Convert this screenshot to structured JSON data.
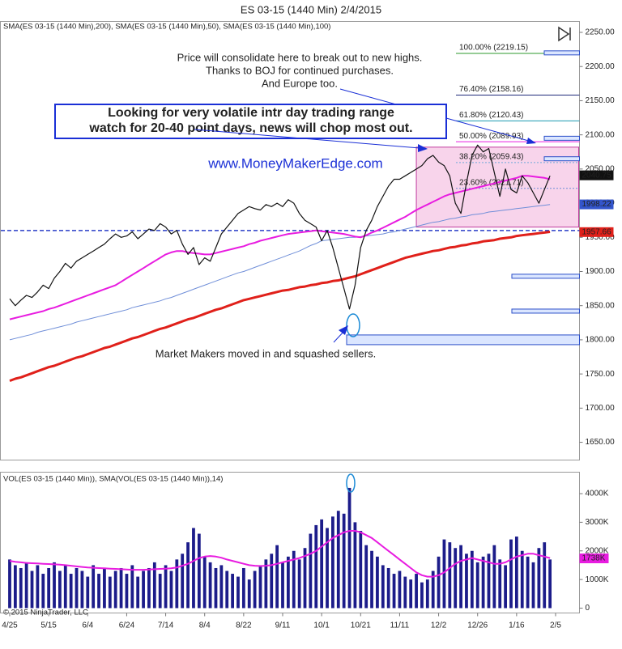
{
  "chart_data": {
    "type": "price-volume",
    "title": "ES 03-15 (1440 Min)  2/4/2015",
    "indicator_label": "SMA(ES 03-15 (1440 Min),200), SMA(ES 03-15 (1440 Min),50), SMA(ES 03-15 (1440 Min),100)",
    "volume_label": "VOL(ES 03-15 (1440 Min)), SMA(VOL(ES 03-15 (1440 Min)),14)",
    "copyright": "© 2015 NinjaTrader, LLC",
    "annotations": {
      "consolidate": [
        "Price will consolidate here to break out to new highs.",
        "Thanks to BOJ for continued purchases.",
        "And Europe too."
      ],
      "box": [
        "Looking for very volatile intr day trading range",
        "watch for 20-40 point days, news will chop most out."
      ],
      "website": "www.MoneyMakerEdge.com",
      "market_makers": "Market Makers moved in and squashed sellers."
    },
    "categories": [
      "4/25",
      null,
      null,
      null,
      null,
      null,
      null,
      "5/15",
      null,
      null,
      null,
      null,
      null,
      null,
      "6/4",
      null,
      null,
      null,
      null,
      null,
      null,
      "6/24",
      null,
      null,
      null,
      null,
      null,
      null,
      "7/14",
      null,
      null,
      null,
      null,
      null,
      null,
      "8/4",
      null,
      null,
      null,
      null,
      null,
      null,
      "8/22",
      null,
      null,
      null,
      null,
      null,
      null,
      "9/11",
      null,
      null,
      null,
      null,
      null,
      null,
      "10/1",
      null,
      null,
      null,
      null,
      null,
      null,
      "10/21",
      null,
      null,
      null,
      null,
      null,
      null,
      "11/11",
      null,
      null,
      null,
      null,
      null,
      null,
      "12/2",
      null,
      null,
      null,
      null,
      null,
      null,
      "12/26",
      null,
      null,
      null,
      null,
      null,
      null,
      "1/16",
      null,
      null,
      null,
      null,
      null,
      null,
      "2/5"
    ],
    "ylim": [
      1624,
      2266
    ],
    "yticks": [
      {
        "value": 2250,
        "label": "2250.00"
      },
      {
        "value": 2200,
        "label": "2200.00"
      },
      {
        "value": 2150,
        "label": "2150.00"
      },
      {
        "value": 2100,
        "label": "2100.00"
      },
      {
        "value": 2050,
        "label": "2050.00"
      },
      {
        "value": 2000,
        "label": "2000.00"
      },
      {
        "value": 1950,
        "label": "1950.00"
      },
      {
        "value": 1900,
        "label": "1900.00"
      },
      {
        "value": 1850,
        "label": "1850.00"
      },
      {
        "value": 1800,
        "label": "1800.00"
      },
      {
        "value": 1750,
        "label": "1750.00"
      },
      {
        "value": 1700,
        "label": "1700.00"
      },
      {
        "value": 1650,
        "label": "1650.00"
      }
    ],
    "series": [
      {
        "name": "Close",
        "color": "#111111",
        "width": 1.2,
        "values": [
          1860,
          1850,
          1858,
          1865,
          1862,
          1870,
          1880,
          1875,
          1890,
          1900,
          1912,
          1905,
          1915,
          1920,
          1925,
          1930,
          1935,
          1940,
          1948,
          1955,
          1950,
          1952,
          1958,
          1948,
          1955,
          1962,
          1960,
          1970,
          1965,
          1955,
          1960,
          1940,
          1925,
          1935,
          1910,
          1920,
          1915,
          1935,
          1955,
          1965,
          1975,
          1985,
          1990,
          1995,
          1992,
          1990,
          1998,
          1995,
          2000,
          1995,
          2005,
          2000,
          1985,
          1975,
          1970,
          1965,
          1945,
          1960,
          1935,
          1905,
          1875,
          1845,
          1880,
          1935,
          1960,
          1975,
          1995,
          2010,
          2025,
          2035,
          2035,
          2040,
          2045,
          2050,
          2055,
          2065,
          2070,
          2060,
          2055,
          2040,
          2000,
          1985,
          2030,
          2070,
          2085,
          2075,
          2080,
          2045,
          2010,
          2050,
          2020,
          2015,
          2040,
          2030,
          2015,
          2000,
          2020,
          2040,
          null
        ]
      },
      {
        "name": "SMA 200",
        "color": "#e0201a",
        "width": 3,
        "values": [
          1740,
          1743,
          1745,
          1748,
          1751,
          1754,
          1757,
          1760,
          1762,
          1765,
          1768,
          1771,
          1774,
          1776,
          1779,
          1782,
          1785,
          1788,
          1790,
          1793,
          1796,
          1799,
          1802,
          1804,
          1807,
          1810,
          1813,
          1816,
          1818,
          1821,
          1824,
          1827,
          1830,
          1832,
          1835,
          1838,
          1841,
          1844,
          1846,
          1849,
          1852,
          1855,
          1858,
          1860,
          1862,
          1864,
          1866,
          1868,
          1870,
          1872,
          1873,
          1875,
          1877,
          1878,
          1880,
          1881,
          1883,
          1884,
          1886,
          1887,
          1889,
          1891,
          1893,
          1896,
          1899,
          1902,
          1905,
          1908,
          1911,
          1914,
          1917,
          1920,
          1922,
          1924,
          1926,
          1928,
          1930,
          1931,
          1933,
          1935,
          1936,
          1938,
          1939,
          1941,
          1942,
          1944,
          1945,
          1946,
          1948,
          1949,
          1950,
          1952,
          1953,
          1954,
          1955,
          1956,
          1957,
          1958,
          null
        ]
      },
      {
        "name": "SMA 50",
        "color": "#e81ce0",
        "width": 2,
        "values": [
          1830,
          1832,
          1834,
          1836,
          1838,
          1840,
          1842,
          1845,
          1847,
          1850,
          1853,
          1856,
          1859,
          1862,
          1865,
          1868,
          1871,
          1874,
          1877,
          1880,
          1885,
          1890,
          1895,
          1900,
          1905,
          1910,
          1915,
          1920,
          1925,
          1928,
          1930,
          1930,
          1928,
          1927,
          1926,
          1925,
          1925,
          1927,
          1929,
          1931,
          1933,
          1935,
          1937,
          1940,
          1942,
          1945,
          1947,
          1949,
          1951,
          1953,
          1955,
          1956,
          1957,
          1958,
          1959,
          1960,
          1959,
          1958,
          1957,
          1956,
          1955,
          1953,
          1951,
          1950,
          1953,
          1957,
          1960,
          1964,
          1968,
          1972,
          1976,
          1980,
          1985,
          1990,
          1994,
          1998,
          2002,
          2006,
          2010,
          2013,
          2015,
          2017,
          2019,
          2021,
          2023,
          2025,
          2027,
          2029,
          2031,
          2033,
          2035,
          2037,
          2040,
          2040,
          2039,
          2038,
          2037,
          2035,
          null
        ]
      },
      {
        "name": "SMA 100",
        "color": "#6f8ed8",
        "width": 1,
        "values": [
          1800,
          1802,
          1804,
          1806,
          1808,
          1811,
          1813,
          1815,
          1817,
          1819,
          1821,
          1823,
          1826,
          1828,
          1830,
          1832,
          1834,
          1836,
          1838,
          1840,
          1842,
          1844,
          1847,
          1849,
          1851,
          1853,
          1855,
          1857,
          1860,
          1862,
          1865,
          1868,
          1871,
          1874,
          1877,
          1880,
          1883,
          1886,
          1889,
          1892,
          1895,
          1898,
          1900,
          1903,
          1906,
          1909,
          1912,
          1915,
          1918,
          1921,
          1924,
          1927,
          1930,
          1934,
          1938,
          1941,
          1945,
          1946,
          1947,
          1948,
          1949,
          1950,
          1950,
          1951,
          1952,
          1953,
          1954,
          1955,
          1957,
          1958,
          1960,
          1962,
          1964,
          1966,
          1968,
          1970,
          1972,
          1973,
          1975,
          1977,
          1978,
          1980,
          1981,
          1983,
          1984,
          1985,
          1987,
          1988,
          1989,
          1990,
          1991,
          1992,
          1993,
          1994,
          1995,
          1996,
          1997,
          1998,
          null
        ]
      }
    ],
    "price_tags": [
      {
        "value": 2040.75,
        "color": "#111111"
      },
      {
        "value": 1998.22,
        "color": "#3355cc"
      },
      {
        "value": 1957.66,
        "color": "#e0201a"
      }
    ],
    "fib_levels": [
      {
        "label": "100.00% (2219.15)",
        "value": 2219.15,
        "color": "#2e9a2e"
      },
      {
        "label": "76.40% (2158.16)",
        "value": 2158.16,
        "color": "#1f2a7a"
      },
      {
        "label": "61.80% (2120.43)",
        "value": 2120.43,
        "color": "#1a9ab0"
      },
      {
        "label": "50.00% (2089.93)",
        "value": 2089.93,
        "color": "#e81ce0"
      },
      {
        "label": "38.20% (2059.43)",
        "value": 2059.43,
        "color": "#6fa8d8"
      },
      {
        "label": "23.60% (2021.71)",
        "value": 2021.71,
        "color": "#6f8ed8"
      }
    ],
    "support_levels": [
      2220,
      2095,
      2065,
      1893,
      1842,
      1800
    ],
    "dashed_level": 1960,
    "range_zone": [
      1965,
      2082
    ],
    "volume": {
      "color": "#1c1c8a",
      "sma_color": "#e81ce0",
      "ylim": [
        -170,
        4750
      ],
      "yticks": [
        {
          "value": 4000,
          "label": "4000K"
        },
        {
          "value": 3000,
          "label": "3000K"
        },
        {
          "value": 2000,
          "label": "2000K"
        },
        {
          "value": 1000,
          "label": "1000K"
        },
        0
      ],
      "values": [
        1700,
        1500,
        1400,
        1600,
        1300,
        1500,
        1200,
        1400,
        1600,
        1300,
        1500,
        1200,
        1400,
        1300,
        1100,
        1500,
        1200,
        1400,
        1100,
        1300,
        1400,
        1200,
        1500,
        1100,
        1300,
        1400,
        1600,
        1200,
        1500,
        1300,
        1700,
        1900,
        2300,
        2800,
        2600,
        1800,
        1600,
        1400,
        1500,
        1300,
        1200,
        1100,
        1400,
        1000,
        1300,
        1500,
        1700,
        1900,
        2200,
        1600,
        1800,
        2000,
        1700,
        2100,
        2600,
        2900,
        3100,
        2800,
        3200,
        3400,
        3300,
        4200,
        3000,
        2700,
        2200,
        2000,
        1800,
        1500,
        1400,
        1200,
        1300,
        1100,
        1000,
        1200,
        900,
        1000,
        1300,
        1800,
        2400,
        2300,
        2100,
        2200,
        1900,
        2000,
        1600,
        1800,
        1900,
        2200,
        1700,
        1500,
        2400,
        2500,
        2000,
        1800,
        1600,
        2100,
        2300,
        1700,
        null
      ],
      "sma": [
        1650,
        1620,
        1600,
        1580,
        1570,
        1560,
        1550,
        1540,
        1530,
        1520,
        1500,
        1480,
        1460,
        1440,
        1420,
        1410,
        1400,
        1390,
        1380,
        1370,
        1360,
        1350,
        1340,
        1340,
        1340,
        1350,
        1360,
        1370,
        1380,
        1390,
        1420,
        1480,
        1550,
        1650,
        1750,
        1800,
        1820,
        1800,
        1760,
        1700,
        1650,
        1600,
        1550,
        1500,
        1480,
        1470,
        1480,
        1500,
        1550,
        1600,
        1650,
        1700,
        1750,
        1820,
        1900,
        2000,
        2150,
        2300,
        2450,
        2550,
        2650,
        2700,
        2700,
        2650,
        2550,
        2450,
        2300,
        2150,
        2000,
        1850,
        1700,
        1550,
        1400,
        1250,
        1150,
        1100,
        1100,
        1150,
        1250,
        1400,
        1550,
        1650,
        1700,
        1750,
        1700,
        1650,
        1600,
        1550,
        1550,
        1600,
        1700,
        1800,
        1850,
        1900,
        1900,
        1850,
        1800,
        1750,
        null
      ],
      "tag": {
        "value": 1738,
        "label": "1738K",
        "color": "#e81ce0"
      }
    }
  }
}
